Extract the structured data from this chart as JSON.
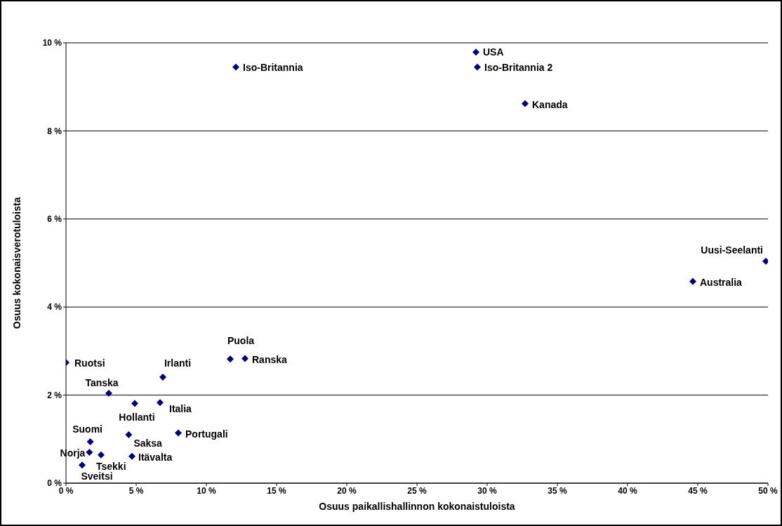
{
  "chart_data": {
    "type": "scatter",
    "xlabel": "Osuus paikallishallinnon kokonaistuloista",
    "ylabel": "Osuus kokonaisverotuloista",
    "x": [
      0,
      3.05,
      6.9,
      11.7,
      12.75,
      4.9,
      6.7,
      8.0,
      4.47,
      1.73,
      1.67,
      2.5,
      4.7,
      1.15,
      12.1,
      29.2,
      29.3,
      32.7,
      49.85,
      44.65
    ],
    "series": [
      {
        "color": "#000080",
        "values": [
          2.74,
          2.04,
          2.41,
          2.82,
          2.83,
          1.81,
          1.83,
          1.14,
          1.1,
          0.94,
          0.7,
          0.64,
          0.61,
          0.41,
          9.45,
          9.79,
          9.45,
          8.62,
          5.04,
          4.58
        ]
      }
    ],
    "annotations": [
      {
        "text": "Ruotsi",
        "x": 0,
        "y": 2.74
      },
      {
        "text": "Tanska",
        "x": 3.05,
        "y": 2.04
      },
      {
        "text": "Irlanti",
        "x": 6.9,
        "y": 2.41
      },
      {
        "text": "Puola",
        "x": 11.7,
        "y": 2.82
      },
      {
        "text": "Ranska",
        "x": 12.75,
        "y": 2.83
      },
      {
        "text": "Hollanti",
        "x": 4.9,
        "y": 1.81
      },
      {
        "text": "Italia",
        "x": 6.7,
        "y": 1.83
      },
      {
        "text": "Portugali",
        "x": 8.0,
        "y": 1.14
      },
      {
        "text": "Saksa",
        "x": 4.47,
        "y": 1.1
      },
      {
        "text": "Suomi",
        "x": 1.73,
        "y": 0.94
      },
      {
        "text": "Norja",
        "x": 1.67,
        "y": 0.7
      },
      {
        "text": "Tsekki",
        "x": 2.5,
        "y": 0.64
      },
      {
        "text": "Itävalta",
        "x": 4.7,
        "y": 0.61
      },
      {
        "text": "Sveitsi",
        "x": 1.15,
        "y": 0.41
      },
      {
        "text": "Iso-Britannia",
        "x": 12.1,
        "y": 9.45
      },
      {
        "text": "USA",
        "x": 29.2,
        "y": 9.79
      },
      {
        "text": "Iso-Britannia 2",
        "x": 29.3,
        "y": 9.45
      },
      {
        "text": "Kanada",
        "x": 32.7,
        "y": 8.62
      },
      {
        "text": "Uusi-Seelanti",
        "x": 49.85,
        "y": 5.04
      },
      {
        "text": "Australia",
        "x": 44.65,
        "y": 4.58
      }
    ],
    "xlim": [
      0,
      50
    ],
    "xticks": [
      {
        "value": 0,
        "label": "0 %"
      },
      {
        "value": 5,
        "label": "5 %"
      },
      {
        "value": 10,
        "label": "10 %"
      },
      {
        "value": 15,
        "label": "15 %"
      },
      {
        "value": 20,
        "label": "20 %"
      },
      {
        "value": 25,
        "label": "25 %"
      },
      {
        "value": 30,
        "label": "30 %"
      },
      {
        "value": 35,
        "label": "35 %"
      },
      {
        "value": 40,
        "label": "40 %"
      },
      {
        "value": 45,
        "label": "45 %"
      },
      {
        "value": 50,
        "label": "50 %"
      }
    ],
    "ylim": [
      0,
      10
    ],
    "yticks": [
      {
        "value": 0,
        "label": "0 %"
      },
      {
        "value": 2,
        "label": "2 %"
      },
      {
        "value": 4,
        "label": "4 %"
      },
      {
        "value": 6,
        "label": "6 %"
      },
      {
        "value": 8,
        "label": "8 %"
      },
      {
        "value": 10,
        "label": "10 %"
      }
    ],
    "grid": "y",
    "marker": "diamond",
    "legend": false
  }
}
